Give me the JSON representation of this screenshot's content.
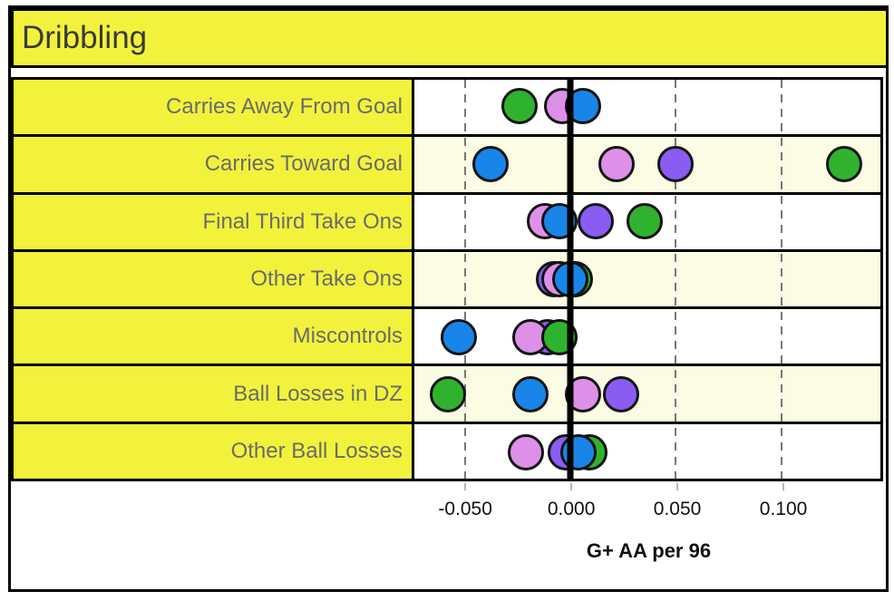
{
  "title": "Dribbling",
  "axis": {
    "label": "G+ AA per 96",
    "xmin": -0.074,
    "xmax": 0.147,
    "ticks": [
      {
        "value": -0.05,
        "label": "-0.050"
      },
      {
        "value": 0.0,
        "label": "0.000"
      },
      {
        "value": 0.05,
        "label": "0.050"
      },
      {
        "value": 0.1,
        "label": "0.100"
      }
    ]
  },
  "colors": {
    "yellow": "#F2F23C",
    "cream": "#FCFCE4",
    "white": "#FFFFFF",
    "blue": "#1985E8",
    "violet": "#DE90E8",
    "purple": "#8A5CF2",
    "green": "#2FB32F",
    "grid": "#777777",
    "tick": "#B5B5B5",
    "labeltext": "#6B6B6B",
    "titletext": "#3A3A3A"
  },
  "rows": [
    {
      "label": "Carries Away From Goal",
      "band": "white",
      "dots": [
        {
          "color": "green",
          "value": -0.024
        },
        {
          "color": "violet",
          "value": -0.004
        },
        {
          "color": "blue",
          "value": 0.006
        }
      ]
    },
    {
      "label": "Carries Toward Goal",
      "band": "cream",
      "dots": [
        {
          "color": "blue",
          "value": -0.038
        },
        {
          "color": "violet",
          "value": 0.022
        },
        {
          "color": "purple",
          "value": 0.05
        },
        {
          "color": "green",
          "value": 0.13
        }
      ]
    },
    {
      "label": "Final Third Take Ons",
      "band": "white",
      "dots": [
        {
          "color": "violet",
          "value": -0.012
        },
        {
          "color": "blue",
          "value": -0.005
        },
        {
          "color": "purple",
          "value": 0.012
        },
        {
          "color": "green",
          "value": 0.035
        }
      ]
    },
    {
      "label": "Other Take Ons",
      "band": "cream",
      "dots": [
        {
          "color": "purple",
          "value": -0.008
        },
        {
          "color": "violet",
          "value": -0.005
        },
        {
          "color": "green",
          "value": 0.002
        },
        {
          "color": "blue",
          "value": 0.0
        }
      ]
    },
    {
      "label": "Miscontrols",
      "band": "white",
      "dots": [
        {
          "color": "blue",
          "value": -0.053
        },
        {
          "color": "purple",
          "value": -0.011
        },
        {
          "color": "violet",
          "value": -0.019
        },
        {
          "color": "green",
          "value": -0.005
        }
      ]
    },
    {
      "label": "Ball Losses in DZ",
      "band": "cream",
      "dots": [
        {
          "color": "green",
          "value": -0.058
        },
        {
          "color": "blue",
          "value": -0.019
        },
        {
          "color": "violet",
          "value": 0.006
        },
        {
          "color": "purple",
          "value": 0.024
        }
      ]
    },
    {
      "label": "Other Ball Losses",
      "band": "white",
      "dots": [
        {
          "color": "violet",
          "value": -0.021
        },
        {
          "color": "purple",
          "value": -0.002
        },
        {
          "color": "green",
          "value": 0.009
        },
        {
          "color": "blue",
          "value": 0.004
        }
      ]
    }
  ],
  "chart_data": {
    "type": "scatter",
    "variant": "horizontal dot plot, one row per category, 4 unlabeled color series",
    "title": "Dribbling",
    "xlabel": "G+ AA per 96",
    "xlim": [
      -0.074,
      0.147
    ],
    "xticks": [
      -0.05,
      0.0,
      0.05,
      0.1
    ],
    "xtick_labels": [
      "-0.050",
      "0.000",
      "0.050",
      "0.100"
    ],
    "grid": "dashed vertical gridlines at ticks; thick solid black line at 0",
    "legend_position": "none",
    "categories": [
      "Carries Away From Goal",
      "Carries Toward Goal",
      "Final Third Take Ons",
      "Other Take Ons",
      "Miscontrols",
      "Ball Losses in DZ",
      "Other Ball Losses"
    ],
    "series": [
      {
        "name": "green",
        "color": "#2FB32F",
        "values": [
          -0.024,
          0.13,
          0.035,
          0.002,
          -0.005,
          -0.058,
          0.009
        ]
      },
      {
        "name": "blue",
        "color": "#1985E8",
        "values": [
          0.006,
          -0.038,
          -0.005,
          0.0,
          -0.053,
          -0.019,
          0.004
        ]
      },
      {
        "name": "violet",
        "color": "#DE90E8",
        "values": [
          -0.004,
          0.022,
          -0.012,
          -0.005,
          -0.019,
          0.006,
          -0.021
        ]
      },
      {
        "name": "purple",
        "color": "#8A5CF2",
        "values": [
          null,
          0.05,
          0.012,
          -0.008,
          -0.011,
          0.024,
          -0.002
        ]
      }
    ]
  }
}
